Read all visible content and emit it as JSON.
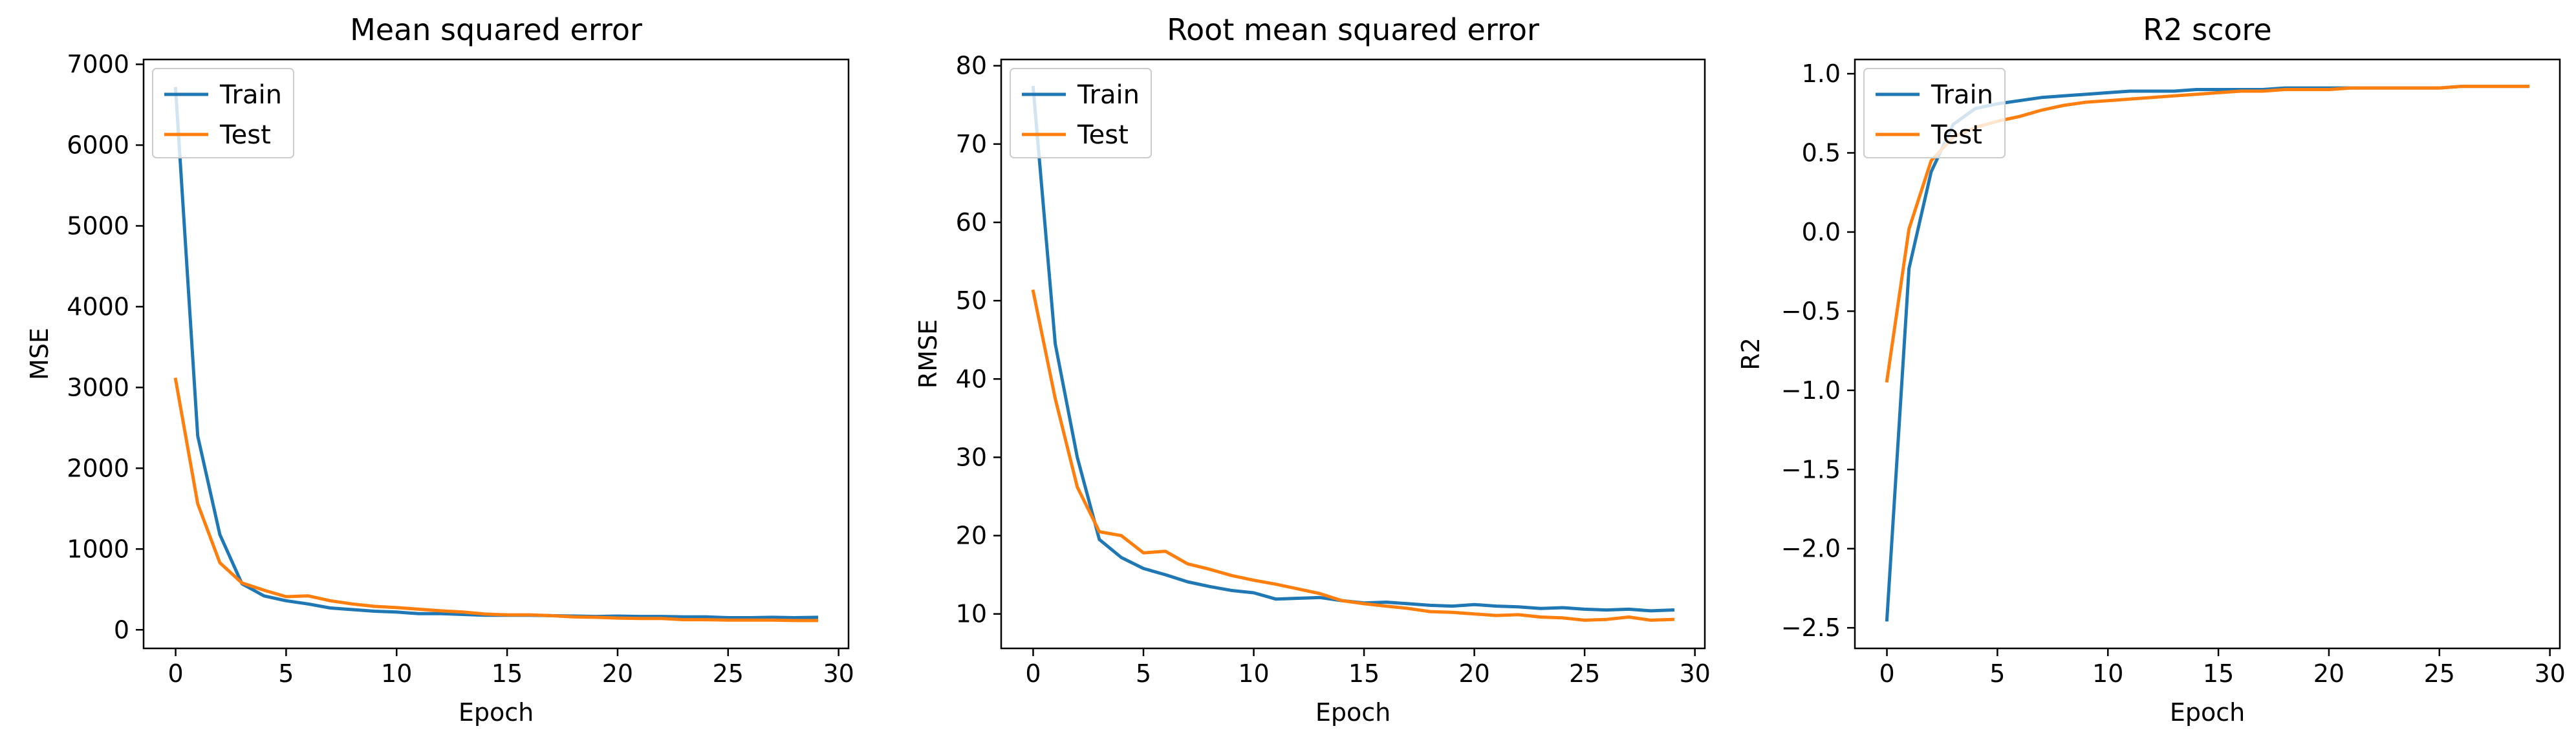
{
  "figure": {
    "background": "#ffffff",
    "series_colors": {
      "Train": "#1f77b4",
      "Test": "#ff7f0e"
    }
  },
  "chart_data": [
    {
      "type": "line",
      "title": "Mean squared error",
      "xlabel": "Epoch",
      "ylabel": "MSE",
      "xlim": [
        -1.45,
        30.45
      ],
      "ylim": [
        -230,
        7060
      ],
      "xticks": [
        0,
        5,
        10,
        15,
        20,
        25,
        30
      ],
      "yticks": [
        0,
        1000,
        2000,
        3000,
        4000,
        5000,
        6000,
        7000
      ],
      "legend": "upper left",
      "grid": false,
      "x": [
        0,
        1,
        2,
        3,
        4,
        5,
        6,
        7,
        8,
        9,
        10,
        11,
        12,
        13,
        14,
        15,
        16,
        17,
        18,
        19,
        20,
        21,
        22,
        23,
        24,
        25,
        26,
        27,
        28,
        29
      ],
      "series": [
        {
          "name": "Train",
          "color": "#1f77b4",
          "values": [
            6700,
            2400,
            1180,
            570,
            420,
            360,
            320,
            270,
            250,
            230,
            220,
            200,
            200,
            190,
            180,
            180,
            180,
            175,
            170,
            165,
            170,
            165,
            165,
            160,
            160,
            150,
            150,
            155,
            150,
            155
          ]
        },
        {
          "name": "Test",
          "color": "#ff7f0e",
          "values": [
            3100,
            1560,
            830,
            580,
            490,
            410,
            420,
            360,
            320,
            290,
            275,
            255,
            235,
            220,
            195,
            185,
            185,
            175,
            160,
            155,
            145,
            140,
            140,
            125,
            125,
            120,
            120,
            120,
            115,
            115
          ]
        }
      ]
    },
    {
      "type": "line",
      "title": "Root mean squared error",
      "xlabel": "Epoch",
      "ylabel": "RMSE",
      "xlim": [
        -1.45,
        30.45
      ],
      "ylim": [
        5.6,
        80.8
      ],
      "xticks": [
        0,
        5,
        10,
        15,
        20,
        25,
        30
      ],
      "yticks": [
        10,
        20,
        30,
        40,
        50,
        60,
        70,
        80
      ],
      "legend": "upper left",
      "grid": false,
      "x": [
        0,
        1,
        2,
        3,
        4,
        5,
        6,
        7,
        8,
        9,
        10,
        11,
        12,
        13,
        14,
        15,
        16,
        17,
        18,
        19,
        20,
        21,
        22,
        23,
        24,
        25,
        26,
        27,
        28,
        29
      ],
      "series": [
        {
          "name": "Train",
          "color": "#1f77b4",
          "values": [
            77.2,
            44.5,
            30.0,
            19.5,
            17.2,
            15.8,
            15.0,
            14.1,
            13.5,
            13.0,
            12.7,
            11.9,
            12.0,
            12.1,
            11.7,
            11.4,
            11.5,
            11.3,
            11.1,
            11.0,
            11.2,
            11.0,
            10.9,
            10.7,
            10.8,
            10.6,
            10.5,
            10.6,
            10.4,
            10.5
          ]
        },
        {
          "name": "Test",
          "color": "#ff7f0e",
          "values": [
            51.2,
            37.5,
            26.2,
            20.5,
            20.0,
            17.8,
            18.0,
            16.4,
            15.7,
            14.9,
            14.3,
            13.8,
            13.2,
            12.6,
            11.7,
            11.3,
            11.0,
            10.7,
            10.3,
            10.2,
            10.0,
            9.8,
            9.9,
            9.6,
            9.5,
            9.2,
            9.3,
            9.6,
            9.2,
            9.3
          ]
        }
      ]
    },
    {
      "type": "line",
      "title": "R2 score",
      "xlabel": "Epoch",
      "ylabel": "R2",
      "xlim": [
        -1.45,
        30.45
      ],
      "ylim": [
        -2.63,
        1.09
      ],
      "xticks": [
        0,
        5,
        10,
        15,
        20,
        25,
        30
      ],
      "yticks": [
        -2.5,
        -2.0,
        -1.5,
        -1.0,
        -0.5,
        0.0,
        0.5,
        1.0
      ],
      "ytick_labels": [
        "−2.5",
        "−2.0",
        "−1.5",
        "−1.0",
        "−0.5",
        "0.0",
        "0.5",
        "1.0"
      ],
      "legend": "upper left",
      "grid": false,
      "x": [
        0,
        1,
        2,
        3,
        4,
        5,
        6,
        7,
        8,
        9,
        10,
        11,
        12,
        13,
        14,
        15,
        16,
        17,
        18,
        19,
        20,
        21,
        22,
        23,
        24,
        25,
        26,
        27,
        28,
        29
      ],
      "series": [
        {
          "name": "Train",
          "color": "#1f77b4",
          "values": [
            -2.45,
            -0.23,
            0.38,
            0.68,
            0.78,
            0.81,
            0.83,
            0.85,
            0.86,
            0.87,
            0.88,
            0.89,
            0.89,
            0.89,
            0.9,
            0.9,
            0.9,
            0.9,
            0.91,
            0.91,
            0.91,
            0.91,
            0.91,
            0.91,
            0.91,
            0.91,
            0.92,
            0.92,
            0.92,
            0.92
          ]
        },
        {
          "name": "Test",
          "color": "#ff7f0e",
          "values": [
            -0.94,
            0.02,
            0.45,
            0.6,
            0.66,
            0.7,
            0.73,
            0.77,
            0.8,
            0.82,
            0.83,
            0.84,
            0.85,
            0.86,
            0.87,
            0.88,
            0.89,
            0.89,
            0.9,
            0.9,
            0.9,
            0.91,
            0.91,
            0.91,
            0.91,
            0.91,
            0.92,
            0.92,
            0.92,
            0.92
          ]
        }
      ]
    }
  ]
}
